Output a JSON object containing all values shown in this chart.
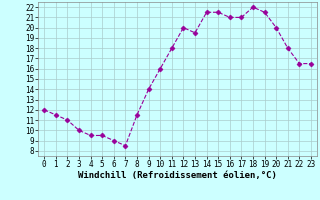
{
  "x": [
    0,
    1,
    2,
    3,
    4,
    5,
    6,
    7,
    8,
    9,
    10,
    11,
    12,
    13,
    14,
    15,
    16,
    17,
    18,
    19,
    20,
    21,
    22,
    23
  ],
  "y": [
    12,
    11.5,
    11,
    10,
    9.5,
    9.5,
    9,
    8.5,
    11.5,
    14,
    16,
    18,
    20,
    19.5,
    21.5,
    21.5,
    21,
    21,
    22,
    21.5,
    20,
    18,
    16.5,
    16.5
  ],
  "line_color": "#990099",
  "marker": "D",
  "marker_size": 2.5,
  "bg_color": "#ccffff",
  "grid_color": "#aacccc",
  "xlabel": "Windchill (Refroidissement éolien,°C)",
  "xlim": [
    -0.5,
    23.5
  ],
  "ylim": [
    7.5,
    22.5
  ],
  "yticks": [
    8,
    9,
    10,
    11,
    12,
    13,
    14,
    15,
    16,
    17,
    18,
    19,
    20,
    21,
    22
  ],
  "xticks": [
    0,
    1,
    2,
    3,
    4,
    5,
    6,
    7,
    8,
    9,
    10,
    11,
    12,
    13,
    14,
    15,
    16,
    17,
    18,
    19,
    20,
    21,
    22,
    23
  ],
  "tick_fontsize": 5.5,
  "xlabel_fontsize": 6.5,
  "xlabel_fontweight": "bold"
}
